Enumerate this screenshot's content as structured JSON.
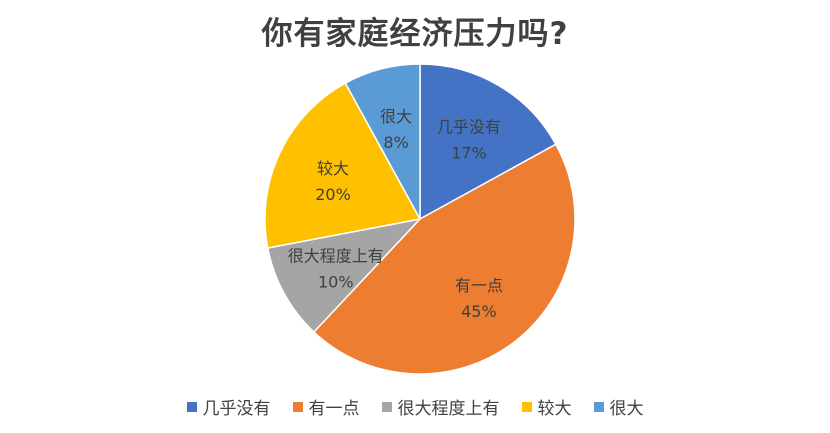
{
  "chart_data": {
    "type": "pie",
    "title": "你有家庭经济压力吗?",
    "legend_position": "bottom",
    "slices": [
      {
        "label": "几乎没有",
        "value": 17,
        "value_label": "17%",
        "color": "#4472C4"
      },
      {
        "label": "有一点",
        "value": 45,
        "value_label": "45%",
        "color": "#ED7D31"
      },
      {
        "label": "很大程度上有",
        "value": 10,
        "value_label": "10%",
        "color": "#A5A5A5"
      },
      {
        "label": "较大",
        "value": 20,
        "value_label": "20%",
        "color": "#FFC000"
      },
      {
        "label": "很大",
        "value": 8,
        "value_label": "8%",
        "color": "#5B9BD5"
      }
    ]
  }
}
